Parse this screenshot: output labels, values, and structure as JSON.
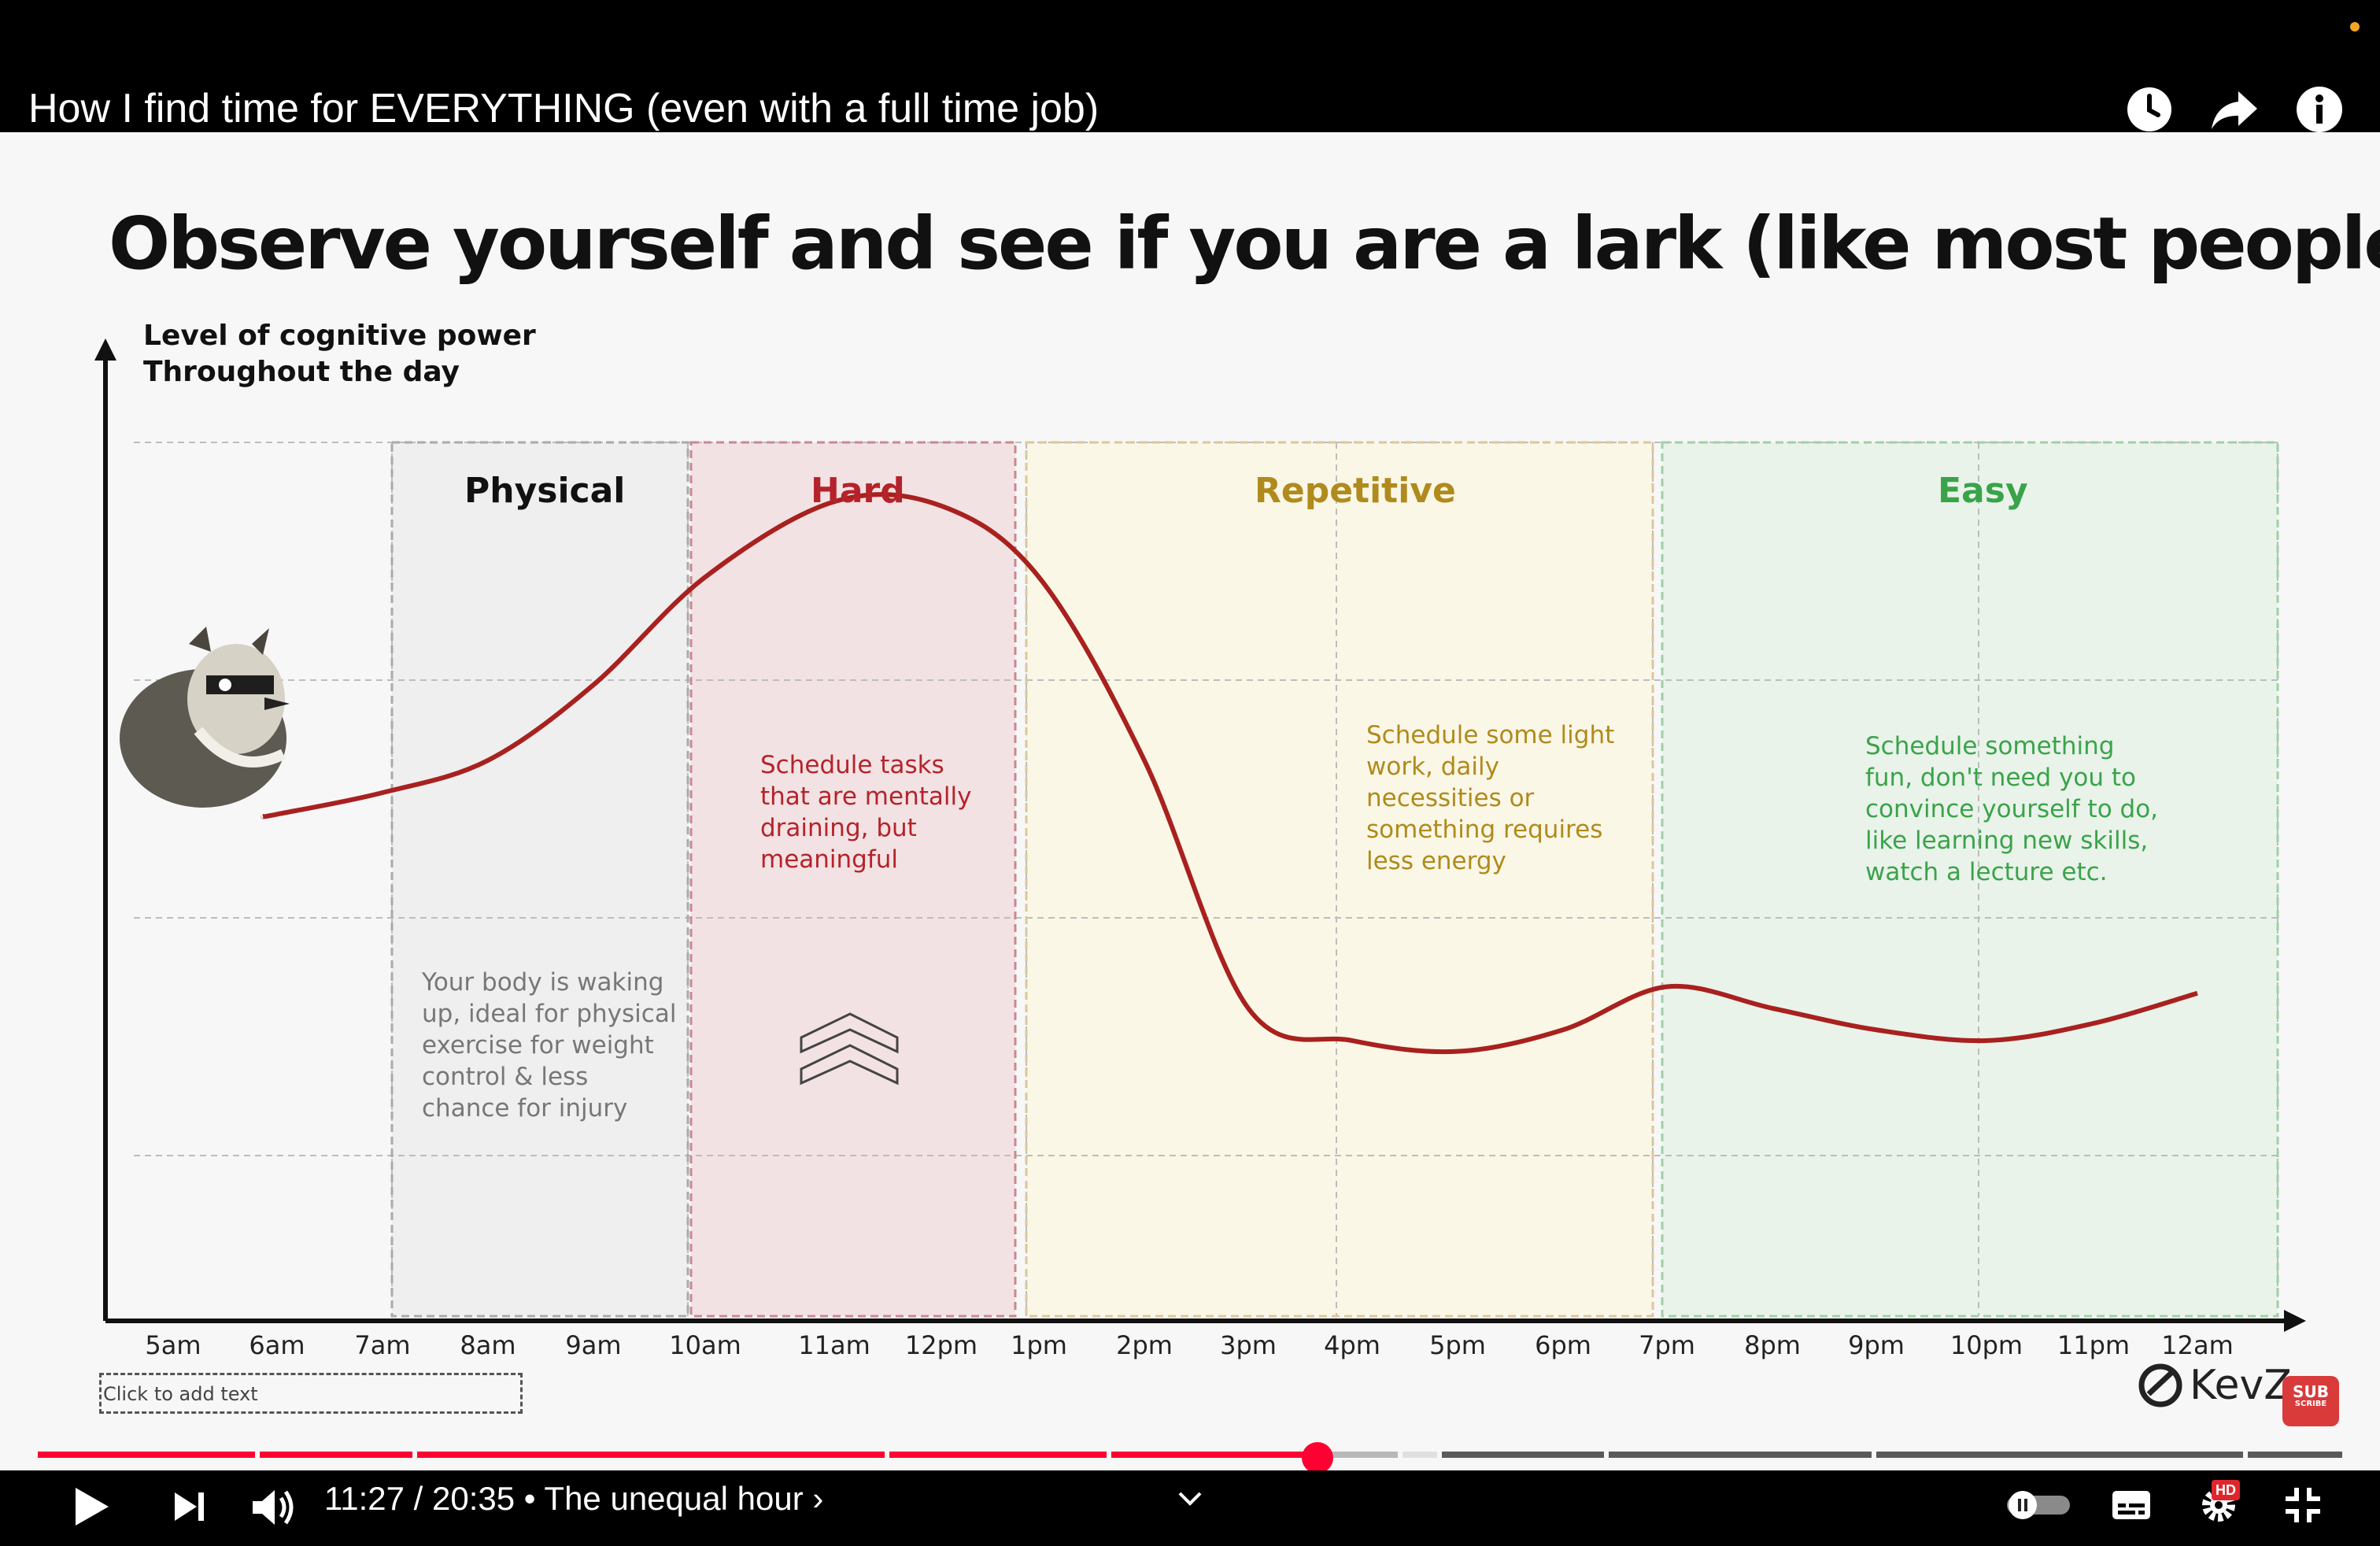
{
  "window": {
    "title": "How I find time for EVERYTHING (even with a full time job)",
    "icons": [
      "watch-later-icon",
      "share-icon",
      "info-icon"
    ]
  },
  "slide": {
    "heading": "Observe yourself and see if you are a lark (like most people)",
    "y_label_line1": "Level of cognitive power",
    "y_label_line2": "Throughout the day",
    "zones": [
      {
        "title": "Physical",
        "color": "#111111",
        "text": [
          "Your body is waking",
          "up, ideal for physical",
          "exercise for weight",
          "control & less",
          "chance for injury"
        ],
        "text_color": "#777777"
      },
      {
        "title": "Hard",
        "color": "#b5232a",
        "text": [
          "Schedule tasks",
          "that are mentally",
          "draining, but",
          "meaningful"
        ],
        "text_color": "#b5232a"
      },
      {
        "title": "Repetitive",
        "color": "#b08a1c",
        "text": [
          "Schedule some light",
          "work, daily",
          "necessities or",
          "something requires",
          "less energy"
        ],
        "text_color": "#b08a1c"
      },
      {
        "title": "Easy",
        "color": "#3aa34a",
        "text": [
          "Schedule something",
          "fun, don't need you to",
          "convince yourself to do,",
          "like learning new skills,",
          "watch a lecture etc."
        ],
        "text_color": "#3aa34a"
      }
    ],
    "placeholder": "Click to add text",
    "brand": "KevZ",
    "sub_badge": "SUB",
    "sub_badge_small": "SCRIBE"
  },
  "chart_data": {
    "type": "line",
    "title": "Observe yourself and see if you are a lark (like most people)",
    "ylabel": "Level of cognitive power Throughout the day",
    "xlabel": "",
    "x": [
      "5am",
      "6am",
      "7am",
      "8am",
      "9am",
      "10am",
      "11am",
      "12pm",
      "1pm",
      "2pm",
      "3pm",
      "4pm",
      "5pm",
      "6pm",
      "7pm",
      "8pm",
      "9pm",
      "10pm",
      "11pm",
      "12am"
    ],
    "series": [
      {
        "values": [
          null,
          2.35,
          2.45,
          2.6,
          2.95,
          3.45,
          3.8,
          3.78,
          3.45,
          2.6,
          1.45,
          1.3,
          1.25,
          1.35,
          1.55,
          1.45,
          1.35,
          1.3,
          1.38,
          1.52
        ]
      }
    ],
    "ylim": [
      0,
      4.9
    ],
    "grid": true,
    "line_color": "#a8211f"
  },
  "player": {
    "time": "11:27 / 20:35",
    "separator": "•",
    "chapter": "The unequal hour",
    "chapter_arrow": "›",
    "progress_played": 0.55,
    "hd_badge": "HD",
    "accent": "#ff0033"
  }
}
